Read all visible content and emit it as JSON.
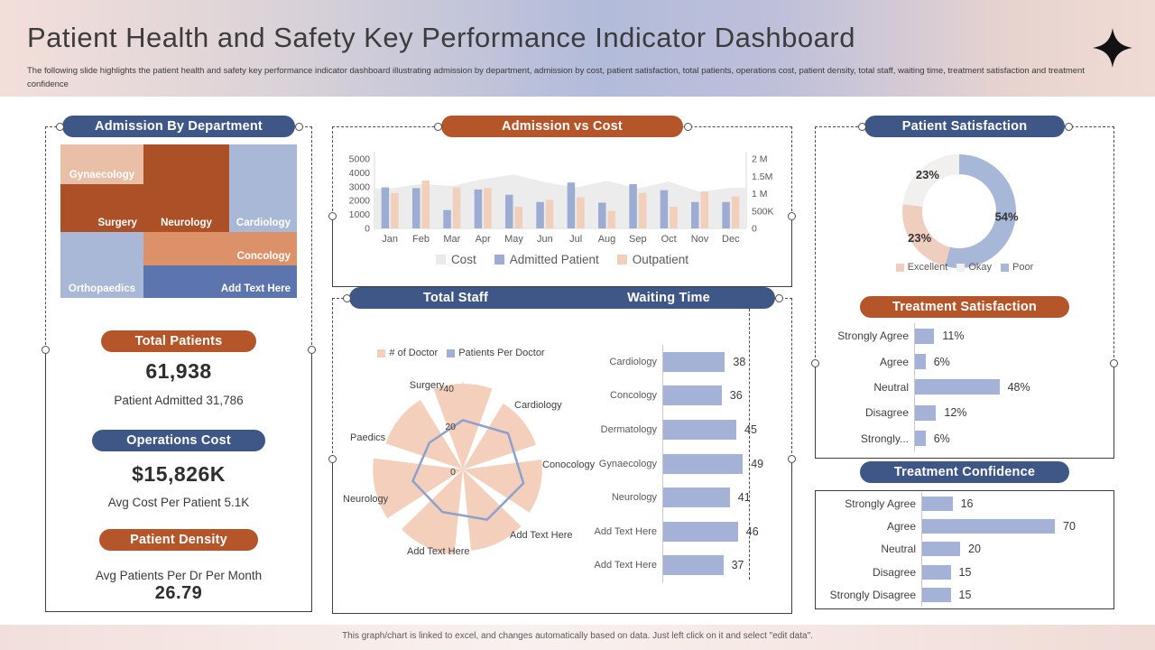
{
  "header": {
    "title": "Patient Health and Safety Key Performance Indicator Dashboard",
    "subtitle": "The following slide highlights the patient health and safety key performance indicator dashboard illustrating admission by department, admission by cost, patient satisfaction, total patients, operations cost, patient density, total staff, waiting time, treatment satisfaction and treatment confidence",
    "star_icon": "sparkle-4-point"
  },
  "footer": {
    "note": "This graph/chart is linked to excel, and changes automatically based on data. Just left click on it and select \"edit data\"."
  },
  "colors": {
    "pill_blue": "#3e5787",
    "pill_orange": "#b5562a",
    "bar_blue": "#a3b2d6",
    "bar_peach": "#f1cfbb",
    "area_gray": "#eaeaea",
    "text_gray": "#595959"
  },
  "kpis": {
    "total_patients": {
      "label": "Total Patients",
      "value": "61,938",
      "sub": "Patient Admitted 31,786"
    },
    "operations_cost": {
      "label": "Operations Cost",
      "value": "$15,826K",
      "sub": "Avg Cost Per Patient 5.1K"
    },
    "patient_density": {
      "label": "Patient Density",
      "sub": "Avg Patients Per Dr Per Month",
      "value": "26.79"
    }
  },
  "chart_data": [
    {
      "id": "admission_by_department",
      "type": "treemap",
      "title": "Admission By Department",
      "cells": [
        {
          "label": "Gynaecology",
          "color": "#eabfa7",
          "x": 0,
          "y": 0,
          "w": 35.1,
          "h": 26.0,
          "align": "center"
        },
        {
          "label": "Surgery",
          "color": "#ac5127",
          "x": 0,
          "y": 26.0,
          "w": 35.1,
          "h": 30.8,
          "align": "right"
        },
        {
          "label": "Orthopaedics",
          "color": "#a9b8d7",
          "x": 0,
          "y": 56.8,
          "w": 35.1,
          "h": 43.2,
          "align": "center"
        },
        {
          "label": "Neurology",
          "color": "#ac5127",
          "x": 35.1,
          "y": 0,
          "w": 36.3,
          "h": 56.8,
          "align": "center"
        },
        {
          "label": "Cardiology",
          "color": "#a9b8d7",
          "x": 71.4,
          "y": 0,
          "w": 28.6,
          "h": 56.8,
          "align": "right"
        },
        {
          "label": "Concology",
          "color": "#dc9168",
          "x": 35.1,
          "y": 56.8,
          "w": 64.9,
          "h": 21.9,
          "align": "right"
        },
        {
          "label": "Add Text Here",
          "color": "#5d75ae",
          "x": 35.1,
          "y": 78.7,
          "w": 64.9,
          "h": 21.3,
          "align": "right"
        }
      ]
    },
    {
      "id": "admission_vs_cost",
      "type": "combo-bar-area",
      "title": "Admission vs Cost",
      "categories": [
        "Jan",
        "Feb",
        "Mar",
        "Apr",
        "May",
        "Jun",
        "Jul",
        "Aug",
        "Sep",
        "Oct",
        "Nov",
        "Dec"
      ],
      "series": [
        {
          "name": "Cost",
          "type": "area",
          "axis": "right",
          "color": "#eaeaea",
          "values_millions": [
            1.15,
            1.28,
            1.22,
            1.42,
            1.55,
            1.33,
            1.18,
            1.37,
            1.15,
            1.35,
            1.05,
            1.17
          ]
        },
        {
          "name": "Admitted Patient",
          "type": "bar",
          "axis": "left",
          "color": "#9cacd3",
          "values": [
            2950,
            2900,
            1320,
            2800,
            2420,
            1900,
            3300,
            1850,
            3180,
            2750,
            1900,
            1900
          ]
        },
        {
          "name": "Outpatient",
          "type": "bar",
          "axis": "left",
          "color": "#f1cfbb",
          "values": [
            2550,
            3450,
            2950,
            2900,
            1550,
            2050,
            2250,
            1250,
            2550,
            1550,
            2650,
            2300
          ]
        }
      ],
      "left_axis": {
        "min": 0,
        "max": 5000,
        "ticks": [
          "0",
          "1000",
          "2000",
          "3000",
          "4000",
          "5000"
        ]
      },
      "right_axis": {
        "min": 0,
        "max_millions": 2,
        "ticks": [
          "0",
          "500K",
          "1 M",
          "1.5M",
          "2 M"
        ]
      },
      "legend_position": "bottom",
      "grid": false
    },
    {
      "id": "total_staff",
      "type": "radar-rose",
      "title": "Total Staff",
      "categories": [
        "Surgery",
        "Cardiology",
        "Conocology",
        "Add Text Here",
        "Add Text Here",
        "Neurology",
        "Paedics"
      ],
      "series": [
        {
          "name": "# of Doctor",
          "type": "rose-wedge",
          "color": "#f4d0bc",
          "values": [
            40,
            36,
            37,
            38,
            40,
            42,
            38
          ]
        },
        {
          "name": "Patients Per Doctor",
          "type": "line",
          "color": "#8ca1cb",
          "values": [
            23,
            27,
            29,
            26,
            22,
            24,
            20
          ]
        }
      ],
      "axis": {
        "min": 0,
        "max": 40,
        "ticks": [
          "0",
          "20",
          "40"
        ]
      }
    },
    {
      "id": "waiting_time",
      "type": "bar-horizontal",
      "title": "Waiting Time",
      "categories": [
        "Cardiology",
        "Concology",
        "Dermatology",
        "Gynaecology",
        "Neurology",
        "Add Text Here",
        "Add Text Here"
      ],
      "values": [
        38,
        36,
        45,
        49,
        41,
        46,
        37
      ],
      "color": "#a3b2d6",
      "xlim": [
        0,
        55
      ]
    },
    {
      "id": "patient_satisfaction",
      "type": "donut",
      "title": "Patient Satisfaction",
      "slices": [
        {
          "label": "Poor",
          "value": 54,
          "color": "#a6b7d8",
          "data_label": "54%"
        },
        {
          "label": "Excellent",
          "value": 23,
          "color": "#efcec0",
          "data_label": "23%"
        },
        {
          "label": "Okay",
          "value": 23,
          "color": "#f1f0ee",
          "data_label": "23%"
        }
      ],
      "legend_order": [
        "Excellent",
        "Okay",
        "Poor"
      ],
      "legend_position": "bottom",
      "start_angle": "top",
      "clockwise": true
    },
    {
      "id": "treatment_satisfaction",
      "type": "bar-horizontal",
      "title": "Treatment Satisfaction",
      "categories": [
        "Strongly Agree",
        "Agree",
        "Neutral",
        "Disagree",
        "Strongly..."
      ],
      "values": [
        11,
        6,
        48,
        12,
        6
      ],
      "value_labels": [
        "11%",
        "6%",
        "48%",
        "12%",
        "6%"
      ],
      "color": "#a3b2d6",
      "xlim": [
        0,
        60
      ]
    },
    {
      "id": "treatment_confidence",
      "type": "bar-horizontal",
      "title": "Treatment Confidence",
      "categories": [
        "Strongly Agree",
        "Agree",
        "Neutral",
        "Disagree",
        "Strongly Disagree"
      ],
      "values": [
        16,
        70,
        20,
        15,
        15
      ],
      "value_labels": [
        "16",
        "70",
        "20",
        "15",
        "15"
      ],
      "color": "#a3b2d6",
      "xlim": [
        0,
        85
      ]
    }
  ]
}
